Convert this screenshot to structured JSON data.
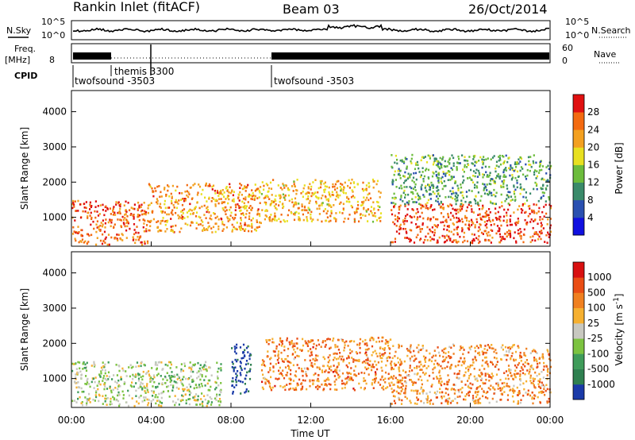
{
  "header": {
    "station": "Rankin Inlet (fitACF)",
    "beam": "Beam 03",
    "date": "26/Oct/2014"
  },
  "noise_panel": {
    "left_label": "N.Sky",
    "right_label": "N.Search",
    "left_ticks": [
      "10^5",
      "10^0"
    ],
    "right_ticks": [
      "10^5",
      "10^0"
    ]
  },
  "freq_panel": {
    "left_label_line1": "Freq.",
    "left_label_line2": "[MHz]",
    "right_label": "Nave",
    "left_ticks": [
      "8"
    ],
    "right_ticks": [
      "60",
      "0"
    ]
  },
  "cpid": {
    "label": "CPID",
    "segments": [
      {
        "name": "twofsound -3503",
        "start_hour": 0.0
      },
      {
        "name": "themis 3300",
        "start_hour": 1.8
      },
      {
        "name": "twofsound -3503",
        "start_hour": 10.0
      }
    ]
  },
  "chart_data": [
    {
      "type": "heatmap",
      "title": "",
      "quantity": "Power",
      "xlabel": "",
      "ylabel": "Slant Range [km]",
      "x_range_hours": [
        0,
        24
      ],
      "ylim": [
        180,
        4600
      ],
      "y_ticks": [
        "1000",
        "2000",
        "3000",
        "4000"
      ],
      "colorbar_label": "Power [dB]",
      "colorbar_ticks": [
        "28",
        "24",
        "20",
        "16",
        "12",
        "8",
        "4"
      ],
      "colorbar_colors": [
        "#1010e0",
        "#2a50b0",
        "#3a8a6a",
        "#6cbc3c",
        "#e8e020",
        "#f3a020",
        "#f36a10",
        "#e01010"
      ],
      "scatter_regions": [
        {
          "x0": 0.0,
          "x1": 3.8,
          "y0": 250,
          "y1": 1500,
          "level": 0.82
        },
        {
          "x0": 3.8,
          "x1": 9.5,
          "y0": 600,
          "y1": 2000,
          "level": 0.72
        },
        {
          "x0": 9.5,
          "x1": 15.5,
          "y0": 900,
          "y1": 2100,
          "level": 0.66
        },
        {
          "x0": 16.0,
          "x1": 24.0,
          "y0": 300,
          "y1": 1400,
          "level": 0.85
        },
        {
          "x0": 16.0,
          "x1": 24.0,
          "y0": 1400,
          "y1": 2800,
          "level": 0.38
        }
      ]
    },
    {
      "type": "heatmap",
      "title": "",
      "quantity": "Velocity",
      "xlabel": "Time UT",
      "ylabel": "Slant Range [km]",
      "x_ticks": [
        "00:00",
        "04:00",
        "08:00",
        "12:00",
        "16:00",
        "20:00",
        "00:00"
      ],
      "x_range_hours": [
        0,
        24
      ],
      "ylim": [
        180,
        4600
      ],
      "y_ticks": [
        "1000",
        "2000",
        "3000",
        "4000"
      ],
      "colorbar_label": "Velocity [m s^-1]",
      "colorbar_ticks": [
        "1000",
        "500",
        "100",
        "25",
        "-25",
        "-100",
        "-500",
        "-1000"
      ],
      "colorbar_colors": [
        "#1a3aa8",
        "#2f8050",
        "#3f9c5a",
        "#7cc340",
        "#c8c8c0",
        "#f6b030",
        "#f08020",
        "#ea4d14",
        "#d81010"
      ],
      "scatter_regions": [
        {
          "x0": 0.0,
          "x1": 7.5,
          "y0": 250,
          "y1": 1500,
          "level": 0.45
        },
        {
          "x0": 8.0,
          "x1": 9.0,
          "y0": 600,
          "y1": 2000,
          "level": 0.05
        },
        {
          "x0": 9.5,
          "x1": 16.0,
          "y0": 700,
          "y1": 2200,
          "level": 0.72
        },
        {
          "x0": 16.0,
          "x1": 24.0,
          "y0": 300,
          "y1": 2000,
          "level": 0.7
        }
      ]
    }
  ]
}
